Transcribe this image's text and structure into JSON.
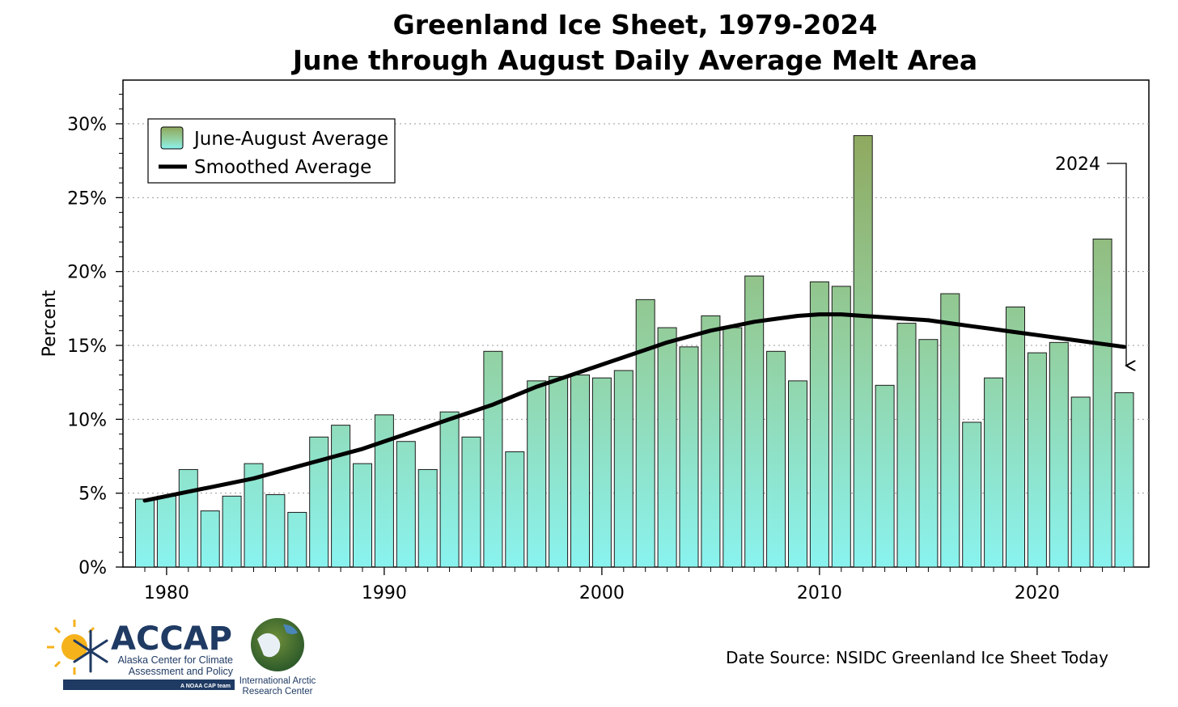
{
  "chart_data": {
    "type": "bar",
    "title": "Greenland Ice Sheet, 1979-2024",
    "subtitle": "June through August Daily Average Melt Area",
    "ylabel": "Percent",
    "xlabel": "",
    "ylim": [
      0,
      32
    ],
    "yticks": [
      "0%",
      "5%",
      "10%",
      "15%",
      "20%",
      "25%",
      "30%"
    ],
    "xticks": [
      "1980",
      "1990",
      "2000",
      "2010",
      "2020"
    ],
    "x": [
      1979,
      1980,
      1981,
      1982,
      1983,
      1984,
      1985,
      1986,
      1987,
      1988,
      1989,
      1990,
      1991,
      1992,
      1993,
      1994,
      1995,
      1996,
      1997,
      1998,
      1999,
      2000,
      2001,
      2002,
      2003,
      2004,
      2005,
      2006,
      2007,
      2008,
      2009,
      2010,
      2011,
      2012,
      2013,
      2014,
      2015,
      2016,
      2017,
      2018,
      2019,
      2020,
      2021,
      2022,
      2023,
      2024
    ],
    "series": [
      {
        "name": "June-August Average",
        "values": [
          4.6,
          4.8,
          6.6,
          3.8,
          4.8,
          7.0,
          4.9,
          3.7,
          8.8,
          9.6,
          7.0,
          10.3,
          8.5,
          6.6,
          10.5,
          8.8,
          14.6,
          7.8,
          12.6,
          12.9,
          13.0,
          12.8,
          13.3,
          18.1,
          16.2,
          14.9,
          17.0,
          16.2,
          19.7,
          14.6,
          12.6,
          19.3,
          19.0,
          29.2,
          12.3,
          16.5,
          15.4,
          18.5,
          9.8,
          12.8,
          17.6,
          14.5,
          15.2,
          11.5,
          22.2,
          11.8
        ]
      },
      {
        "name": "Smoothed Average",
        "values": [
          4.5,
          4.8,
          5.1,
          5.4,
          5.7,
          6.0,
          6.4,
          6.8,
          7.2,
          7.6,
          8.0,
          8.5,
          9.0,
          9.5,
          10.0,
          10.5,
          11.0,
          11.6,
          12.2,
          12.7,
          13.2,
          13.7,
          14.2,
          14.7,
          15.2,
          15.6,
          16.0,
          16.3,
          16.6,
          16.8,
          17.0,
          17.1,
          17.1,
          17.0,
          16.9,
          16.8,
          16.7,
          16.5,
          16.3,
          16.1,
          15.9,
          15.7,
          15.5,
          15.3,
          15.1,
          14.9
        ]
      }
    ],
    "legend": "top-left",
    "grid": "horizontal dotted",
    "annotation": "2024",
    "colors": {
      "bar_top": "#8fa75c",
      "bar_mid": "#93d0a0",
      "bar_bottom": "#8af3ef",
      "smooth_line": "#000000"
    }
  },
  "footer": {
    "source": "Date Source: NSIDC Greenland Ice Sheet Today",
    "accap_name": "ACCAP",
    "accap_line1": "Alaska Center for Climate",
    "accap_line2": "Assessment and Policy",
    "accap_tag": "A NOAA CAP team",
    "iarc_line1": "International Arctic",
    "iarc_line2": "Research Center"
  }
}
